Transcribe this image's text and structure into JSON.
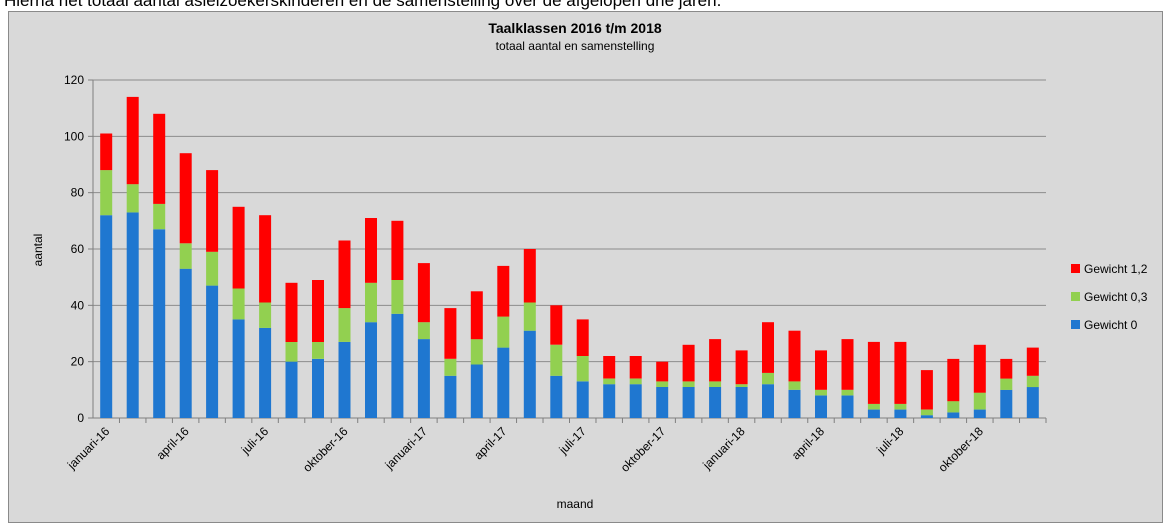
{
  "document": {
    "top_line": "Hierna het totaal aantal asielzoekerskinderen en de samenstelling over de afgelopen drie jaren."
  },
  "chart_data": {
    "type": "bar",
    "stacked": true,
    "title": "Taalklassen 2016 t/m 2018",
    "subtitle": "totaal aantal en samenstelling",
    "xlabel": "maand",
    "ylabel": "aantal",
    "ylim": [
      0,
      120
    ],
    "yticks": [
      0,
      20,
      40,
      60,
      80,
      100,
      120
    ],
    "grid": true,
    "legend_position": "right",
    "categories": [
      "januari-16",
      "februari-16",
      "maart-16",
      "april-16",
      "mei-16",
      "juni-16",
      "juli-16",
      "augustus-16",
      "september-16",
      "oktober-16",
      "november-16",
      "december-16",
      "januari-17",
      "februari-17",
      "maart-17",
      "april-17",
      "mei-17",
      "juni-17",
      "juli-17",
      "augustus-17",
      "september-17",
      "oktober-17",
      "november-17",
      "december-17",
      "januari-18",
      "februari-18",
      "maart-18",
      "april-18",
      "mei-18",
      "juni-18",
      "juli-18",
      "augustus-18",
      "september-18",
      "oktober-18",
      "november-18",
      "december-18"
    ],
    "tick_labels": [
      "januari-16",
      "",
      "",
      "april-16",
      "",
      "",
      "juli-16",
      "",
      "",
      "oktober-16",
      "",
      "",
      "januari-17",
      "",
      "",
      "april-17",
      "",
      "",
      "juli-17",
      "",
      "",
      "oktober-17",
      "",
      "",
      "januari-18",
      "",
      "",
      "april-18",
      "",
      "",
      "juli-18",
      "",
      "",
      "oktober-18",
      "",
      ""
    ],
    "series": [
      {
        "name": "Gewicht 0",
        "color": "#1f77d0",
        "values": [
          72,
          73,
          67,
          53,
          47,
          35,
          32,
          20,
          21,
          27,
          34,
          37,
          28,
          15,
          19,
          25,
          31,
          15,
          13,
          12,
          12,
          11,
          11,
          11,
          11,
          12,
          10,
          8,
          8,
          3,
          3,
          1,
          2,
          3,
          10,
          11
        ]
      },
      {
        "name": "Gewicht 0,3",
        "color": "#92d050",
        "values": [
          16,
          10,
          9,
          9,
          12,
          11,
          9,
          7,
          6,
          12,
          14,
          12,
          6,
          6,
          9,
          11,
          10,
          11,
          9,
          2,
          2,
          2,
          2,
          2,
          1,
          4,
          3,
          2,
          2,
          2,
          2,
          2,
          4,
          6,
          4,
          4
        ]
      },
      {
        "name": "Gewicht 1,2",
        "color": "#ff0000",
        "values": [
          13,
          31,
          32,
          32,
          29,
          29,
          31,
          21,
          22,
          24,
          23,
          21,
          21,
          18,
          17,
          18,
          19,
          14,
          13,
          8,
          8,
          7,
          13,
          15,
          12,
          18,
          18,
          14,
          18,
          22,
          22,
          14,
          15,
          17,
          7,
          10
        ]
      }
    ],
    "legend_order": [
      "Gewicht 1,2",
      "Gewicht 0,3",
      "Gewicht 0"
    ]
  }
}
